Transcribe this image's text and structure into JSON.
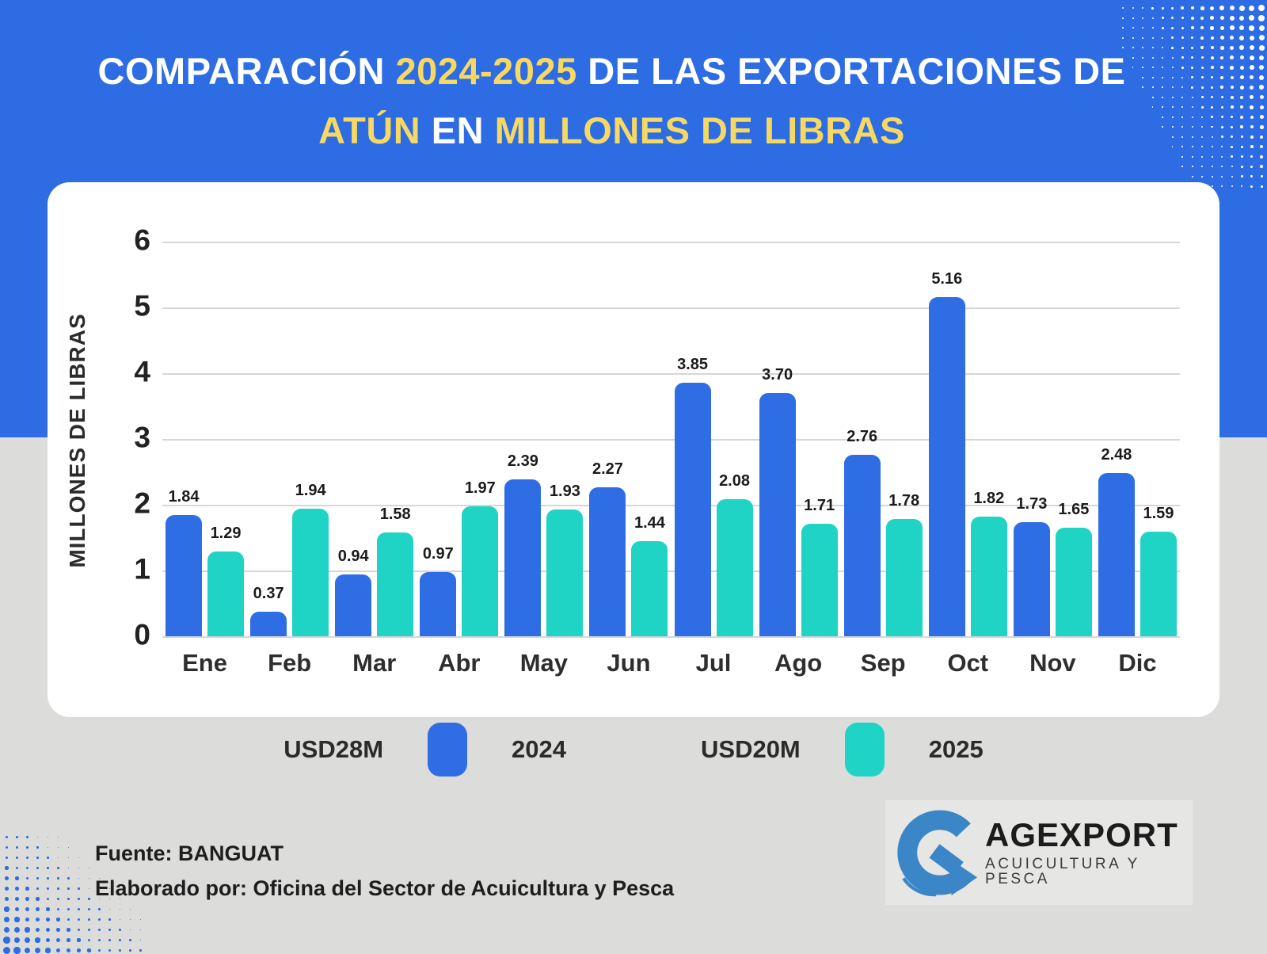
{
  "title": {
    "l1a": "COMPARACIÓN ",
    "l1b": "2024-2025",
    "l1c": " DE LAS EXPORTACIONES DE",
    "l2a": "ATÚN ",
    "l2b": "EN",
    "l2c": " MILLONES DE LIBRAS"
  },
  "chart_data": {
    "type": "bar",
    "categories": [
      "Ene",
      "Feb",
      "Mar",
      "Abr",
      "May",
      "Jun",
      "Jul",
      "Ago",
      "Sep",
      "Oct",
      "Nov",
      "Dic"
    ],
    "series": [
      {
        "name": "2024",
        "color": "#2e6de3",
        "values": [
          1.84,
          0.37,
          0.94,
          0.97,
          2.39,
          2.27,
          3.85,
          3.7,
          2.76,
          5.16,
          1.73,
          2.48
        ]
      },
      {
        "name": "2025",
        "color": "#1fd4c5",
        "values": [
          1.29,
          1.94,
          1.58,
          1.97,
          1.93,
          1.44,
          2.08,
          1.71,
          1.78,
          1.82,
          1.65,
          1.59
        ]
      }
    ],
    "xlabel": "",
    "ylabel": "MILLONES DE LIBRAS",
    "ylim": [
      0,
      6
    ],
    "yticks": [
      0,
      1,
      2,
      3,
      4,
      5,
      6
    ],
    "grid": true,
    "value_labels": true,
    "legend_position": "bottom"
  },
  "legend": {
    "total_2024": "USD28M",
    "year_2024": "2024",
    "total_2025": "USD20M",
    "year_2025": "2025"
  },
  "footer": {
    "source": "Fuente: BANGUAT",
    "elaborated": "Elaborado por: Oficina del Sector de Acuicultura y Pesca"
  },
  "logo": {
    "name": "AGEXPORT",
    "tagline": "ACUICULTURA Y PESCA"
  },
  "colors": {
    "header_blue": "#2d6ce2",
    "highlight_yellow": "#f7d863",
    "bar_blue": "#2e6de3",
    "bar_teal": "#1fd4c5",
    "page_gray": "#dcdcdb",
    "card_white": "#ffffff",
    "logo_blue": "#3a86c7"
  }
}
